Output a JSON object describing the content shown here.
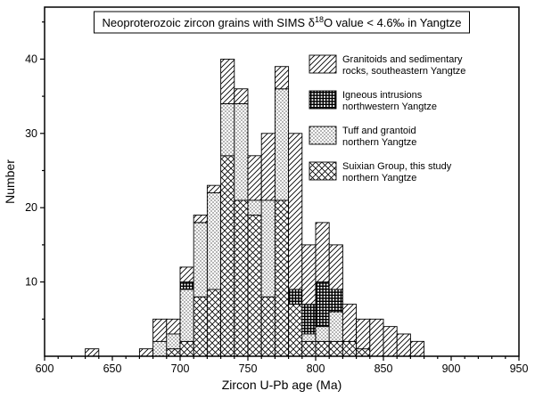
{
  "figure": {
    "title": {
      "prefix": "Neoproterozoic zircon grains with SIMS δ",
      "sup": "18",
      "suffix": "O value < 4.6‰ in Yangtze"
    },
    "x_axis": {
      "label": "Zircon U-Pb age (Ma)",
      "min": 600,
      "max": 950,
      "major_ticks": [
        600,
        650,
        700,
        750,
        800,
        850,
        900,
        950
      ],
      "minor_step": 10
    },
    "y_axis": {
      "label": "Number",
      "min": 0,
      "max": 47,
      "major_ticks": [
        10,
        20,
        30,
        40
      ],
      "minor_step": 5
    }
  },
  "legend": [
    {
      "pattern": "diagonal",
      "lines": [
        "Granitoids and sedimentary",
        "rocks, southeastern Yangtze"
      ]
    },
    {
      "pattern": "grid",
      "lines": [
        "Igneous intrusions",
        "northwestern Yangtze"
      ]
    },
    {
      "pattern": "dots",
      "lines": [
        "Tuff and grantoid",
        "northern Yangtze"
      ]
    },
    {
      "pattern": "crosshatch",
      "lines": [
        "Suixian Group, this study",
        "northern Yangtze"
      ]
    }
  ],
  "chart_data": {
    "type": "bar",
    "stacked": true,
    "title": "Neoproterozoic zircon grains with SIMS δ18O value < 4.6‰ in Yangtze",
    "xlabel": "Zircon U-Pb age (Ma)",
    "ylabel": "Number",
    "xlim": [
      600,
      950
    ],
    "ylim": [
      0,
      47
    ],
    "grid": false,
    "legend_position": "upper right inside",
    "bin_width": 10,
    "bin_centers": [
      635,
      645,
      655,
      665,
      675,
      685,
      695,
      705,
      715,
      725,
      735,
      745,
      755,
      765,
      775,
      785,
      795,
      805,
      815,
      825,
      835,
      845,
      855,
      865,
      875
    ],
    "series": [
      {
        "name": "Suixian Group, this study northern Yangtze",
        "pattern": "crosshatch",
        "values": [
          0,
          0,
          0,
          0,
          0,
          0,
          1,
          2,
          8,
          9,
          27,
          21,
          19,
          8,
          21,
          7,
          2,
          2,
          2,
          2,
          1,
          0,
          0,
          0,
          0
        ]
      },
      {
        "name": "Tuff and grantoid northern Yangtze",
        "pattern": "dots",
        "values": [
          0,
          0,
          0,
          0,
          0,
          2,
          2,
          7,
          10,
          13,
          7,
          13,
          2,
          13,
          15,
          0,
          1,
          2,
          4,
          0,
          0,
          0,
          0,
          0,
          0
        ]
      },
      {
        "name": "Igneous intrusions northwestern Yangtze",
        "pattern": "grid",
        "values": [
          0,
          0,
          0,
          0,
          0,
          0,
          0,
          1,
          0,
          0,
          0,
          0,
          0,
          0,
          0,
          2,
          4,
          6,
          3,
          0,
          0,
          0,
          0,
          0,
          0
        ]
      },
      {
        "name": "Granitoids and sedimentary rocks, southeastern Yangtze",
        "pattern": "diagonal",
        "values": [
          1,
          0,
          0,
          0,
          1,
          3,
          2,
          2,
          1,
          1,
          6,
          2,
          6,
          9,
          3,
          21,
          8,
          8,
          6,
          5,
          4,
          5,
          4,
          3,
          2
        ]
      }
    ],
    "totals": [
      1,
      0,
      0,
      0,
      1,
      5,
      5,
      12,
      19,
      23,
      40,
      36,
      27,
      30,
      39,
      30,
      15,
      18,
      15,
      7,
      5,
      5,
      4,
      3,
      2
    ]
  }
}
